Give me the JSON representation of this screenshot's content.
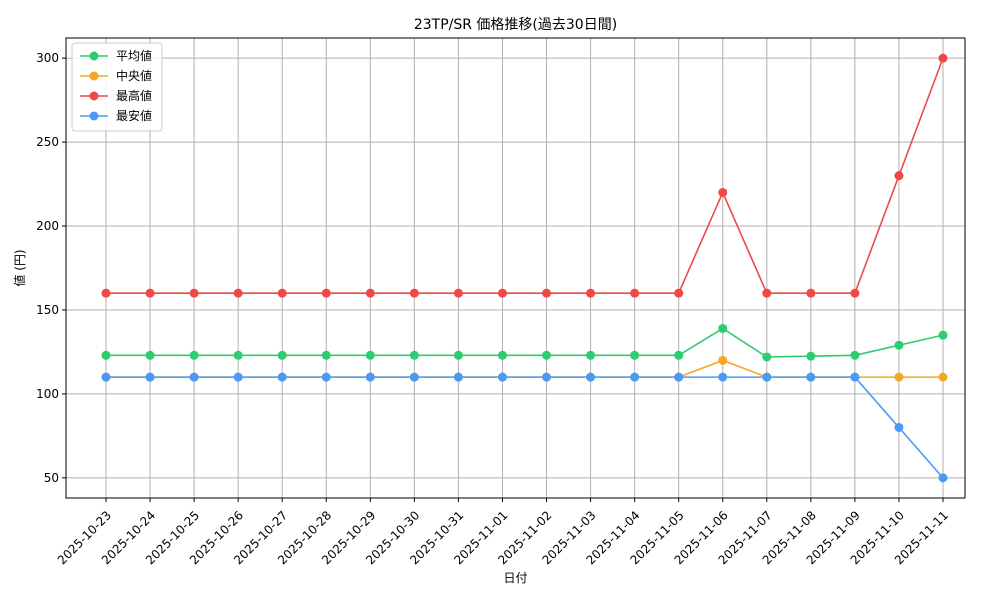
{
  "chart_data": {
    "type": "line",
    "title": "23TP/SR 価格推移(過去30日間)",
    "xlabel": "日付",
    "ylabel": "値 (円)",
    "categories": [
      "2025-10-23",
      "2025-10-24",
      "2025-10-25",
      "2025-10-26",
      "2025-10-27",
      "2025-10-28",
      "2025-10-29",
      "2025-10-30",
      "2025-10-31",
      "2025-11-01",
      "2025-11-02",
      "2025-11-03",
      "2025-11-04",
      "2025-11-05",
      "2025-11-06",
      "2025-11-07",
      "2025-11-08",
      "2025-11-09",
      "2025-11-10",
      "2025-11-11"
    ],
    "ylim": [
      38,
      312
    ],
    "yticks": [
      50,
      100,
      150,
      200,
      250,
      300
    ],
    "grid": true,
    "legend_position": "top-left",
    "series": [
      {
        "name": "平均値",
        "color": "#2ecc71",
        "values": [
          123,
          123,
          123,
          123,
          123,
          123,
          123,
          123,
          123,
          123,
          123,
          123,
          123,
          123,
          139,
          122,
          122.5,
          123,
          129,
          135
        ]
      },
      {
        "name": "中央値",
        "color": "#f5a623",
        "values": [
          110,
          110,
          110,
          110,
          110,
          110,
          110,
          110,
          110,
          110,
          110,
          110,
          110,
          110,
          120,
          110,
          110,
          110,
          110,
          110
        ]
      },
      {
        "name": "最高値",
        "color": "#f04848",
        "values": [
          160,
          160,
          160,
          160,
          160,
          160,
          160,
          160,
          160,
          160,
          160,
          160,
          160,
          160,
          220,
          160,
          160,
          160,
          230,
          300
        ]
      },
      {
        "name": "最安値",
        "color": "#4a9af5",
        "values": [
          110,
          110,
          110,
          110,
          110,
          110,
          110,
          110,
          110,
          110,
          110,
          110,
          110,
          110,
          110,
          110,
          110,
          110,
          80,
          50
        ]
      }
    ]
  }
}
